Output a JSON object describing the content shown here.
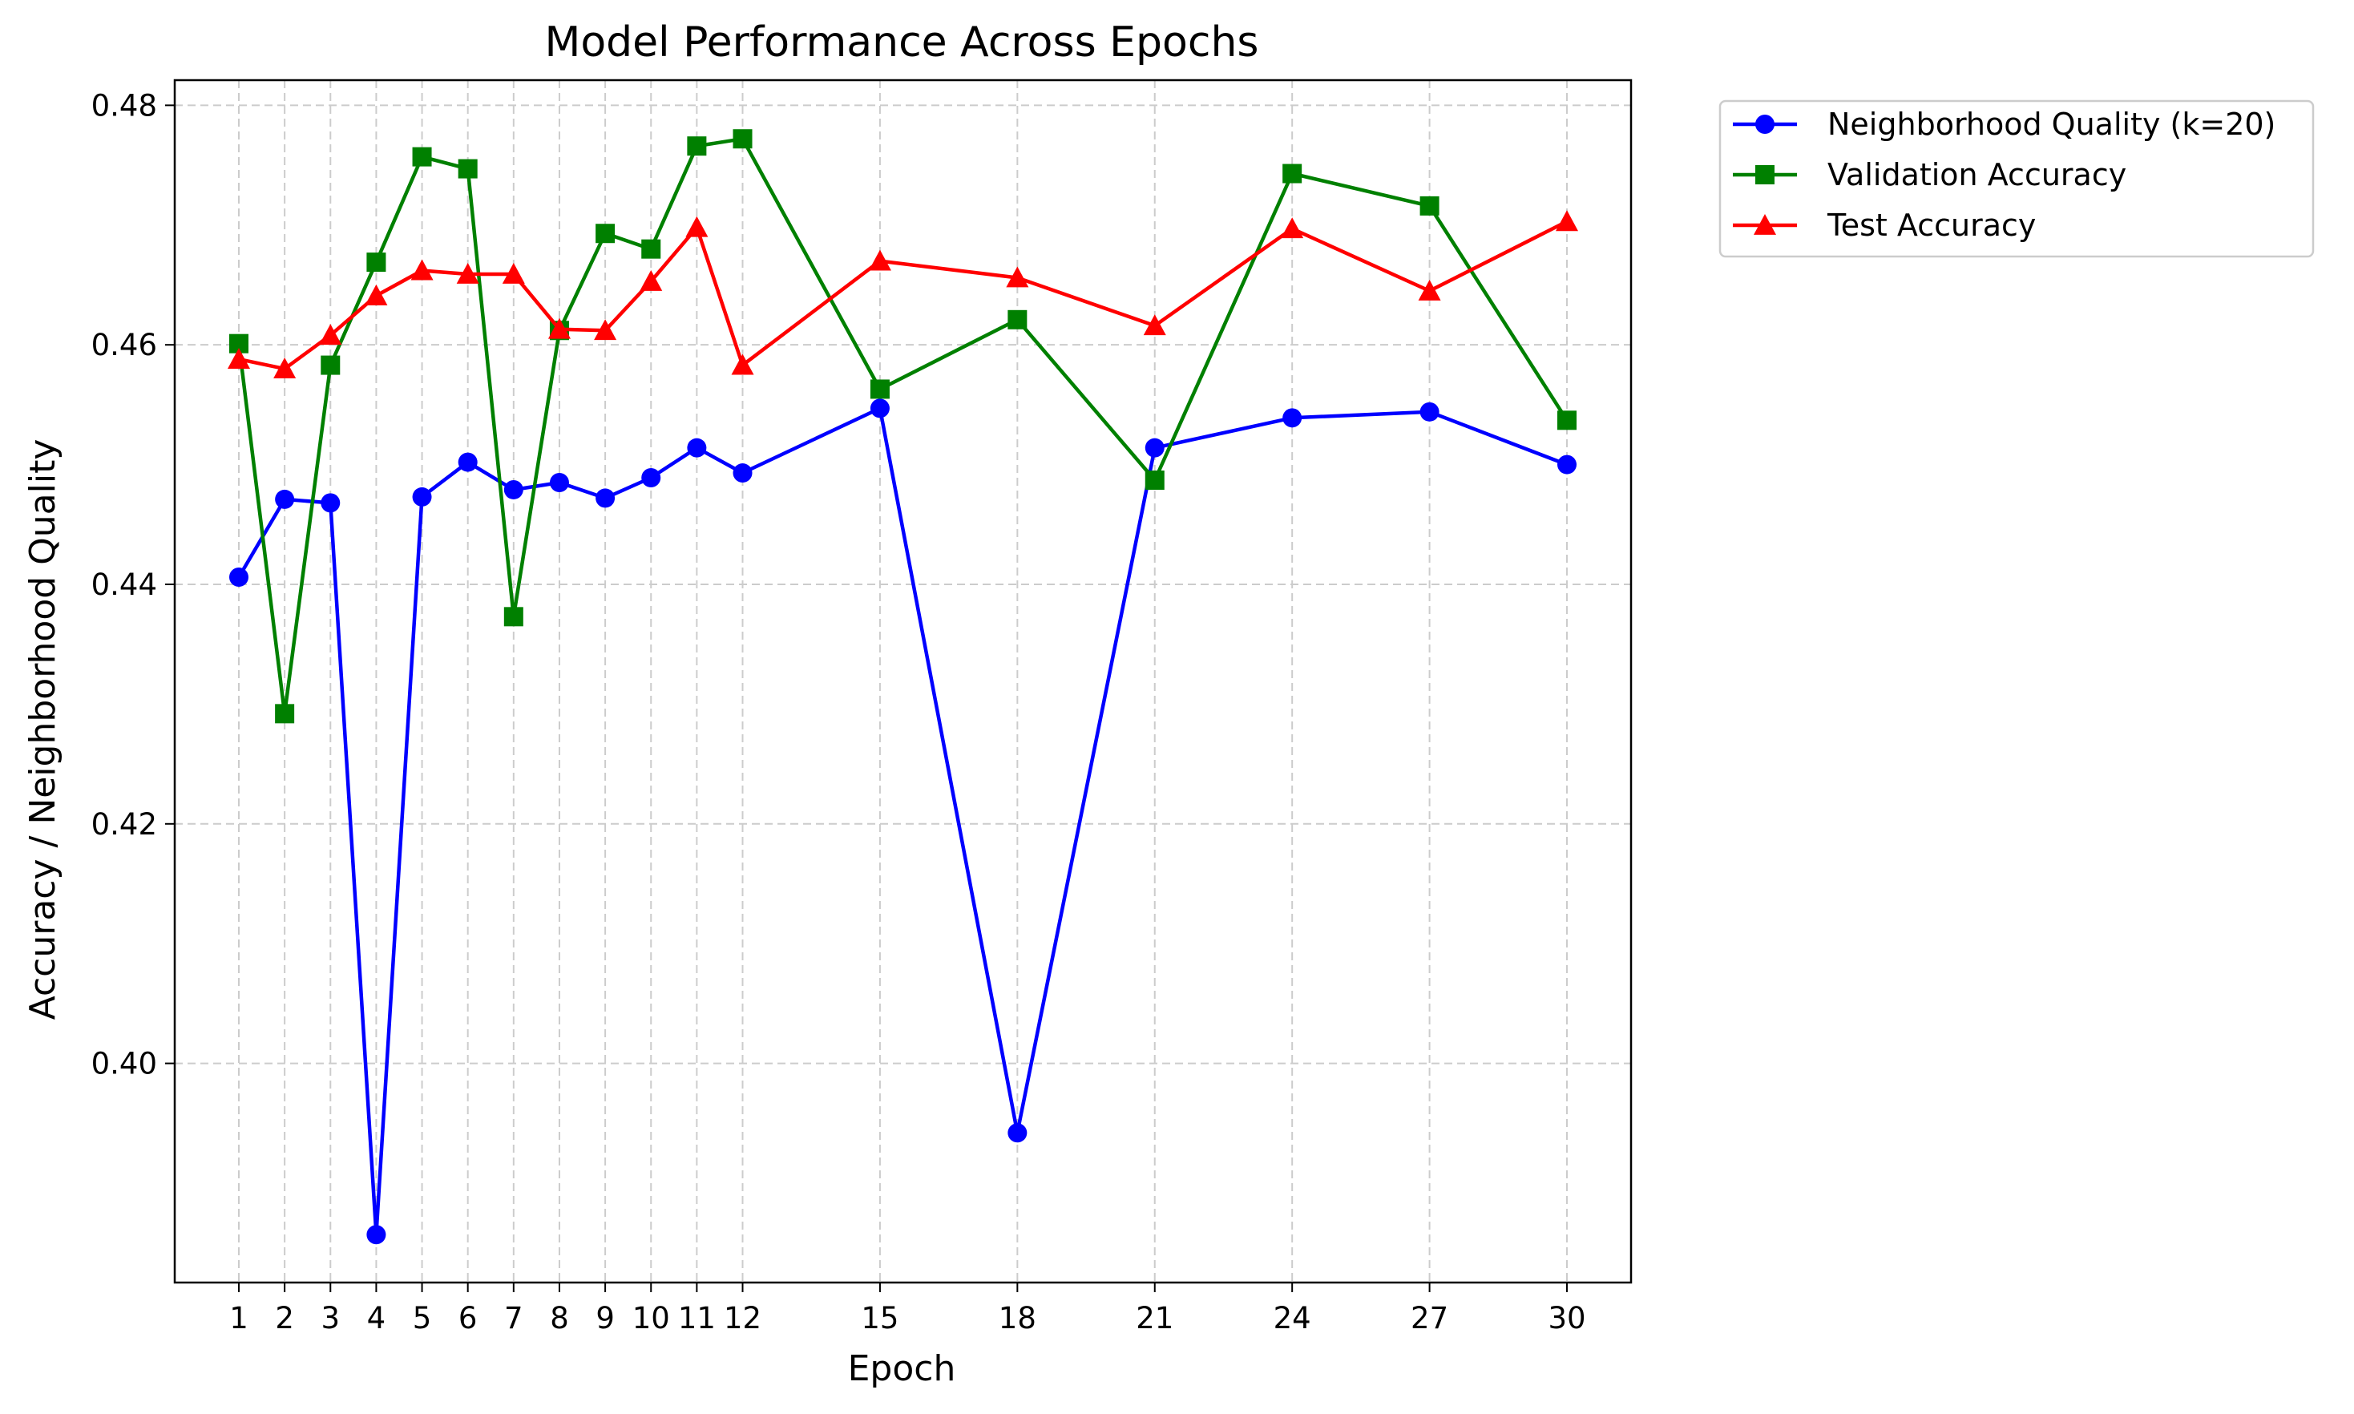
{
  "chart_data": {
    "type": "line",
    "title": "Model Performance Across Epochs",
    "xlabel": "Epoch",
    "ylabel": "Accuracy / Neighborhood Quality",
    "x": [
      1,
      2,
      3,
      4,
      5,
      6,
      7,
      8,
      9,
      10,
      11,
      12,
      15,
      18,
      21,
      24,
      27,
      30
    ],
    "x_ticks": [
      1,
      2,
      3,
      4,
      5,
      6,
      7,
      8,
      9,
      10,
      11,
      12,
      15,
      18,
      21,
      24,
      27,
      30
    ],
    "y_ticks": [
      0.4,
      0.42,
      0.44,
      0.46,
      0.48
    ],
    "y_tick_labels": [
      "0.40",
      "0.42",
      "0.44",
      "0.46",
      "0.48"
    ],
    "xlim": [
      -0.4,
      31.4
    ],
    "ylim": [
      0.3817,
      0.4821
    ],
    "grid": true,
    "legend_position": "outside top-right",
    "series": [
      {
        "name": "Neighborhood Quality (k=20)",
        "color": "#0000ff",
        "marker": "circle",
        "values": [
          0.4406,
          0.4471,
          0.4468,
          0.3857,
          0.4473,
          0.4502,
          0.4479,
          0.4485,
          0.4472,
          0.4489,
          0.4514,
          0.4493,
          0.4547,
          0.3942,
          0.4514,
          0.4539,
          0.4544,
          0.45
        ]
      },
      {
        "name": "Validation Accuracy",
        "color": "#008000",
        "marker": "square",
        "values": [
          0.4601,
          0.4292,
          0.4583,
          0.4669,
          0.4757,
          0.4747,
          0.4373,
          0.4612,
          0.4693,
          0.468,
          0.4766,
          0.4772,
          0.4563,
          0.4621,
          0.4487,
          0.4743,
          0.4716,
          0.4537
        ]
      },
      {
        "name": "Test Accuracy",
        "color": "#ff0000",
        "marker": "triangle",
        "values": [
          0.4588,
          0.458,
          0.4608,
          0.4641,
          0.4662,
          0.4659,
          0.4659,
          0.4613,
          0.4612,
          0.4653,
          0.4698,
          0.4583,
          0.467,
          0.4656,
          0.4616,
          0.4697,
          0.4645,
          0.4703
        ]
      }
    ]
  }
}
